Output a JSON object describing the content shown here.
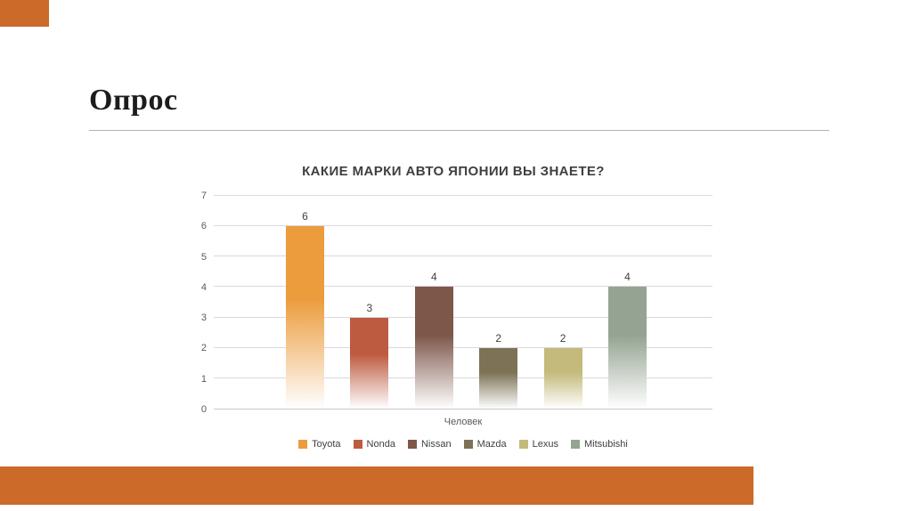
{
  "slide": {
    "title": "Опрос"
  },
  "theme": {
    "accent_color": "#cc6a29",
    "grid_color": "#d9d9d9",
    "axis_color": "#c9c9c9",
    "title_color": "#3f3f3f",
    "tick_color": "#595959"
  },
  "chart_data": {
    "type": "bar",
    "title": "КАКИЕ МАРКИ АВТО ЯПОНИИ ВЫ ЗНАЕТЕ?",
    "categories": [
      "Toyota",
      "Nonda",
      "Nissan",
      "Mazda",
      "Lexus",
      "Mitsubishi"
    ],
    "values": [
      6,
      3,
      4,
      2,
      2,
      4
    ],
    "colors": [
      "#ec9c3d",
      "#bd5b40",
      "#7e574b",
      "#7d7255",
      "#c3ba7b",
      "#95a492"
    ],
    "xlabel": "Человек",
    "ylabel": "",
    "ylim": [
      0,
      7
    ],
    "ytick_step": 1,
    "grid": true,
    "legend_position": "bottom",
    "bar_fill": "gradient-to-white"
  }
}
